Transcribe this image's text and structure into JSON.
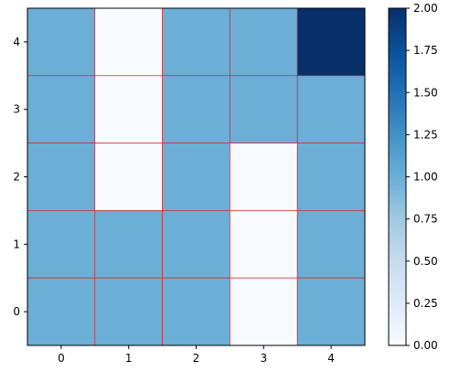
{
  "chart_data": {
    "type": "heatmap",
    "title": "",
    "xlabel": "",
    "ylabel": "",
    "x_ticks": [
      "0",
      "1",
      "2",
      "3",
      "4"
    ],
    "y_ticks": [
      "0",
      "1",
      "2",
      "3",
      "4"
    ],
    "grid": [
      {
        "y": 4,
        "values": [
          1,
          0,
          1,
          1,
          2
        ]
      },
      {
        "y": 3,
        "values": [
          1,
          0,
          1,
          1,
          1
        ]
      },
      {
        "y": 2,
        "values": [
          1,
          0,
          1,
          0,
          1
        ]
      },
      {
        "y": 1,
        "values": [
          1,
          1,
          1,
          0,
          1
        ]
      },
      {
        "y": 0,
        "values": [
          1,
          1,
          1,
          0,
          1
        ]
      }
    ],
    "vmin": 0,
    "vmax": 2,
    "colormap": "Blues",
    "colors": {
      "low": "#f7fbff",
      "mid": "#6baed6",
      "high": "#08306b"
    },
    "cell_edge_color": "#d62728",
    "colorbar": {
      "ticks": [
        "0.00",
        "0.25",
        "0.50",
        "0.75",
        "1.00",
        "1.25",
        "1.50",
        "1.75",
        "2.00"
      ],
      "range": [
        0,
        2
      ]
    }
  }
}
